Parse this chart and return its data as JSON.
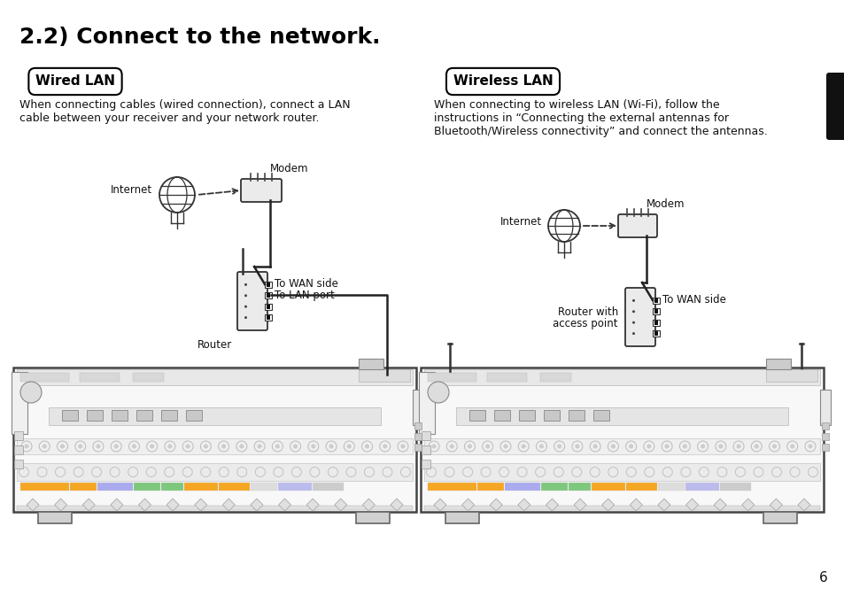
{
  "title": "2.2) Connect to the network.",
  "bg_color": "#ffffff",
  "page_number": "6",
  "wired_label": "Wired LAN",
  "wireless_label": "Wireless LAN",
  "wired_desc1": "When connecting cables (wired connection), connect a LAN",
  "wired_desc2": "cable between your receiver and your network router.",
  "wireless_desc1": "When connecting to wireless LAN (Wi-Fi), follow the",
  "wireless_desc2": "instructions in “Connecting the external antennas for",
  "wireless_desc3": "Bluetooth/Wireless connectivity” and connect the antennas.",
  "wired_internet": "Internet",
  "wired_modem": "Modem",
  "wired_router": "Router",
  "wired_wan": "To WAN side",
  "wired_lan": "To LAN port",
  "wireless_internet": "Internet",
  "wireless_modem": "Modem",
  "wireless_router_line1": "Router with",
  "wireless_router_line2": "access point",
  "wireless_wan": "To WAN side"
}
